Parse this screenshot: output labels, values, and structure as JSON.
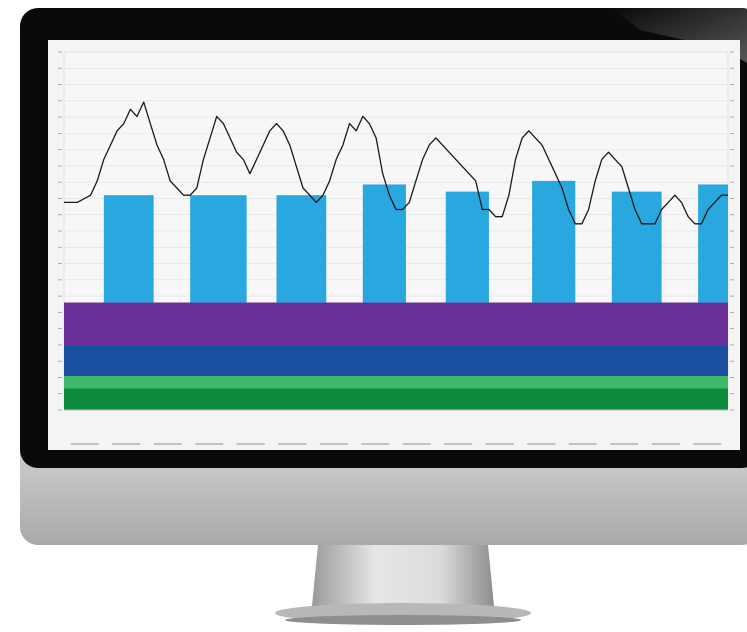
{
  "device": {
    "type": "desktop monitor",
    "bezel_color": "#0a0a0a",
    "chin_color": "#c9c9c9",
    "stand_color": "#bdbdbd"
  },
  "chart_data": {
    "type": "area",
    "title": "",
    "xlabel": "",
    "ylabel": "",
    "ylim": [
      0,
      100
    ],
    "grid": true,
    "legend": "none",
    "x_ticks": [
      "",
      "",
      "",
      "",
      "",
      "",
      "",
      "",
      "",
      "",
      "",
      "",
      "",
      "",
      "",
      ""
    ],
    "y_ticks": [
      "",
      "",
      "",
      "",
      "",
      "",
      "",
      "",
      "",
      "",
      "",
      "",
      "",
      "",
      "",
      "",
      "",
      "",
      "",
      "",
      "",
      "",
      ""
    ],
    "stacked_bands": [
      {
        "name": "",
        "color": "#0e8a3c",
        "lower": 0,
        "upper": 6
      },
      {
        "name": "",
        "color": "#3fb86a",
        "lower": 6,
        "upper": 9.5
      },
      {
        "name": "",
        "color": "#1a4fa0",
        "lower": 9.5,
        "upper": 18
      },
      {
        "name": "",
        "color": "#6a2f96",
        "lower": 18,
        "upper": 30
      }
    ],
    "bars": {
      "color": "#29a7df",
      "base": 28,
      "blocks": [
        {
          "start": 6.0,
          "end": 13.5,
          "level": 60
        },
        {
          "start": 19.0,
          "end": 27.5,
          "level": 60
        },
        {
          "start": 32.0,
          "end": 39.5,
          "level": 60
        },
        {
          "start": 45.0,
          "end": 51.5,
          "level": 63
        },
        {
          "start": 57.5,
          "end": 64.0,
          "level": 61
        },
        {
          "start": 70.5,
          "end": 77.0,
          "level": 64
        },
        {
          "start": 82.5,
          "end": 90.0,
          "level": 61
        },
        {
          "start": 95.5,
          "end": 100.0,
          "level": 63
        }
      ]
    },
    "line": {
      "color": "#1a1a1a",
      "x": [
        0,
        2,
        4,
        5,
        6,
        7,
        8,
        9,
        10,
        11,
        12,
        13,
        14,
        15,
        16,
        17,
        18,
        19,
        20,
        21,
        22,
        23,
        24,
        25,
        26,
        27,
        28,
        29,
        30,
        31,
        32,
        33,
        34,
        35,
        36,
        37,
        38,
        39,
        40,
        41,
        42,
        43,
        44,
        45,
        46,
        47,
        48,
        49,
        50,
        51,
        52,
        53,
        54,
        55,
        56,
        57,
        58,
        59,
        60,
        61,
        62,
        63,
        64,
        65,
        66,
        67,
        68,
        69,
        70,
        71,
        72,
        73,
        74,
        75,
        76,
        77,
        78,
        79,
        80,
        81,
        82,
        83,
        84,
        85,
        86,
        87,
        88,
        89,
        90,
        91,
        92,
        93,
        94,
        95,
        96,
        97,
        98,
        99,
        100
      ],
      "y": [
        58,
        58,
        60,
        64,
        70,
        74,
        78,
        80,
        84,
        82,
        86,
        80,
        74,
        70,
        64,
        62,
        60,
        60,
        62,
        70,
        76,
        82,
        80,
        76,
        72,
        70,
        66,
        70,
        74,
        78,
        80,
        78,
        74,
        68,
        62,
        60,
        58,
        60,
        64,
        70,
        74,
        80,
        78,
        82,
        80,
        76,
        66,
        60,
        56,
        56,
        58,
        64,
        70,
        74,
        76,
        74,
        72,
        70,
        68,
        66,
        64,
        56,
        56,
        54,
        54,
        60,
        70,
        76,
        78,
        76,
        74,
        70,
        66,
        62,
        56,
        52,
        52,
        56,
        64,
        70,
        72,
        70,
        68,
        62,
        56,
        52,
        52,
        52,
        56,
        58,
        60,
        58,
        54,
        52,
        52,
        56,
        58,
        60,
        60
      ]
    }
  }
}
